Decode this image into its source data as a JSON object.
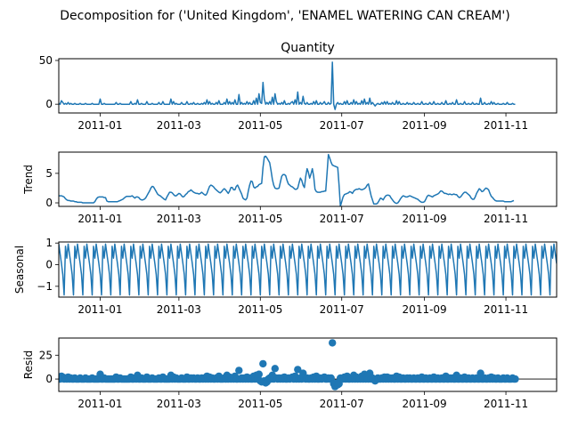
{
  "suptitle": "Decomposition for ('United Kingdom', 'ENAMEL WATERING CAN CREAM')",
  "line_color": "#1f77b4",
  "chart_data": [
    {
      "type": "line",
      "panel": "observed",
      "title": "Quantity",
      "ylabel": "",
      "xlim": [
        "2010-12-01",
        "2011-12-09"
      ],
      "ylim": [
        -10,
        52
      ],
      "yticks": [
        0,
        50
      ],
      "xticks": [
        "2011-01",
        "2011-03",
        "2011-05",
        "2011-07",
        "2011-09",
        "2011-11"
      ],
      "grid": false,
      "x_start": "2010-12-01",
      "values": [
        1,
        0,
        4,
        2,
        0,
        1,
        0,
        2,
        0,
        1,
        0,
        0,
        1,
        0,
        0,
        0,
        1,
        0,
        0,
        0,
        1,
        0,
        0,
        0,
        0,
        1,
        0,
        0,
        0,
        0,
        0,
        6,
        0,
        0,
        1,
        0,
        0,
        0,
        0,
        0,
        0,
        0,
        0,
        2,
        0,
        0,
        1,
        0,
        0,
        0,
        0,
        0,
        0,
        0,
        3,
        0,
        0,
        1,
        0,
        5,
        0,
        0,
        1,
        0,
        0,
        0,
        3,
        0,
        0,
        0,
        1,
        0,
        0,
        0,
        0,
        2,
        0,
        0,
        3,
        0,
        0,
        0,
        0,
        0,
        6,
        0,
        3,
        0,
        1,
        0,
        0,
        0,
        2,
        0,
        0,
        0,
        3,
        0,
        0,
        1,
        0,
        2,
        0,
        0,
        1,
        0,
        0,
        1,
        0,
        2,
        0,
        5,
        0,
        3,
        0,
        1,
        0,
        0,
        2,
        0,
        4,
        0,
        0,
        0,
        2,
        0,
        6,
        0,
        3,
        0,
        2,
        0,
        5,
        0,
        0,
        11,
        0,
        2,
        0,
        1,
        0,
        3,
        0,
        2,
        0,
        0,
        4,
        0,
        7,
        0,
        12,
        2,
        1,
        25,
        6,
        0,
        2,
        0,
        3,
        0,
        8,
        0,
        12,
        3,
        0,
        1,
        0,
        2,
        0,
        4,
        0,
        0,
        1,
        0,
        2,
        3,
        0,
        5,
        0,
        14,
        0,
        2,
        0,
        9,
        1,
        0,
        2,
        0,
        0,
        1,
        0,
        3,
        0,
        4,
        0,
        0,
        2,
        0,
        1,
        3,
        0,
        0,
        2,
        0,
        1,
        48,
        0,
        -6,
        0,
        2,
        0,
        1,
        0,
        0,
        3,
        0,
        4,
        0,
        0,
        2,
        0,
        5,
        0,
        3,
        0,
        1,
        0,
        4,
        0,
        6,
        0,
        2,
        0,
        7,
        0,
        2,
        0,
        -2,
        0,
        1,
        0,
        0,
        2,
        0,
        3,
        0,
        3,
        0,
        1,
        0,
        2,
        0,
        0,
        4,
        0,
        3,
        0,
        0,
        1,
        0,
        0,
        2,
        0,
        1,
        0,
        0,
        2,
        0,
        0,
        1,
        0,
        0,
        3,
        0,
        0,
        1,
        0,
        0,
        2,
        0,
        0,
        3,
        0,
        0,
        1,
        0,
        0,
        2,
        0,
        0,
        4,
        0,
        0,
        1,
        0,
        2,
        0,
        0,
        5,
        0,
        0,
        1,
        0,
        0,
        3,
        0,
        0,
        1,
        0,
        0,
        2,
        0,
        0,
        1,
        0,
        0,
        7,
        0,
        0,
        2,
        0,
        0,
        1,
        0,
        3,
        0,
        2,
        0,
        0,
        1,
        0,
        0,
        0,
        1,
        0,
        0,
        2,
        0,
        0,
        0,
        1,
        0,
        0
      ]
    },
    {
      "type": "line",
      "panel": "trend",
      "title": "",
      "ylabel": "Trend",
      "xlim": [
        "2010-12-01",
        "2011-12-09"
      ],
      "ylim": [
        -0.6,
        8.6
      ],
      "yticks": [
        0,
        5
      ],
      "xticks": [
        "2011-01",
        "2011-03",
        "2011-05",
        "2011-07",
        "2011-09",
        "2011-11"
      ],
      "grid": false,
      "x_start": "2010-12-01",
      "values": [
        1.2,
        1.2,
        1.2,
        1.1,
        1,
        0.7,
        0.5,
        0.4,
        0.4,
        0.3,
        0.3,
        0.3,
        0.2,
        0.2,
        0.1,
        0.1,
        0.1,
        0.1,
        0,
        0,
        0,
        0,
        0,
        0,
        0,
        0,
        0,
        0.2,
        0.6,
        0.9,
        1,
        1,
        1,
        1,
        0.9,
        0.9,
        0.3,
        0.2,
        0.2,
        0.2,
        0.2,
        0.2,
        0.2,
        0.2,
        0.2,
        0.3,
        0.4,
        0.5,
        0.6,
        0.8,
        1,
        1.1,
        1.1,
        1.1,
        1.1,
        1.2,
        1,
        0.8,
        1,
        1,
        0.9,
        0.6,
        0.5,
        0.5,
        0.6,
        0.8,
        1.2,
        1.6,
        2,
        2.5,
        2.8,
        2.7,
        2.3,
        1.9,
        1.5,
        1.3,
        1.2,
        1,
        0.8,
        0.6,
        0.5,
        1,
        1.4,
        1.8,
        1.8,
        1.7,
        1.4,
        1.2,
        1.2,
        1.4,
        1.6,
        1.5,
        1.2,
        1,
        1.1,
        1.4,
        1.6,
        1.9,
        2,
        2.2,
        2,
        1.8,
        1.7,
        1.6,
        1.6,
        1.5,
        1.6,
        1.8,
        1.6,
        1.4,
        1.3,
        1.6,
        2.2,
        2.8,
        3,
        2.9,
        2.7,
        2.4,
        2.2,
        2,
        1.8,
        1.7,
        1.9,
        2.2,
        2.4,
        2.2,
        1.9,
        1.6,
        2,
        2.6,
        2.6,
        2.2,
        2.2,
        2.8,
        3,
        2.5,
        2,
        1.5,
        0.8,
        0.6,
        0.5,
        0.8,
        2,
        3,
        3.7,
        3.6,
        2.7,
        2.5,
        2.7,
        2.8,
        3.1,
        3.2,
        3.3,
        6,
        7.8,
        7.9,
        7.6,
        7.2,
        6.8,
        5.5,
        4,
        3,
        2.5,
        2.4,
        2.4,
        2.5,
        3.5,
        4.5,
        4.8,
        4.8,
        4.6,
        3.8,
        3.2,
        3,
        2.8,
        2.7,
        2.5,
        2.3,
        2.3,
        2.5,
        3.4,
        4.2,
        3.8,
        3,
        2.6,
        4.5,
        5.8,
        5.2,
        4.2,
        4.9,
        5.8,
        4.5,
        2.3,
        1.9,
        1.8,
        1.8,
        1.8,
        1.9,
        1.9,
        2,
        2,
        5,
        8.2,
        7.6,
        6.9,
        6.4,
        6.3,
        6.2,
        6.1,
        6,
        3,
        -0.6,
        0.2,
        1,
        1.4,
        1.5,
        1.6,
        1.7,
        1.9,
        1.8,
        1.6,
        2,
        2.2,
        2.3,
        2.3,
        2.4,
        2.3,
        2.2,
        2.3,
        2.4,
        2.6,
        3,
        3.2,
        2.2,
        1.2,
        0.5,
        -0.2,
        -0.2,
        -0.2,
        0,
        0.4,
        0.8,
        0.7,
        0.5,
        0.9,
        1.2,
        1.3,
        1.3,
        1.2,
        0.8,
        0.5,
        0.2,
        0,
        -0.1,
        0,
        0.3,
        0.7,
        1,
        1.2,
        1.1,
        1,
        1,
        1.1,
        1.2,
        1.1,
        1,
        0.9,
        0.8,
        0.7,
        0.6,
        0.4,
        0.2,
        0.1,
        0.1,
        0.2,
        0.6,
        1.1,
        1.3,
        1.2,
        1.1,
        1,
        1.2,
        1.3,
        1.4,
        1.5,
        1.7,
        2,
        2,
        1.8,
        1.6,
        1.6,
        1.5,
        1.4,
        1.5,
        1.4,
        1.4,
        1.5,
        1.4,
        1.4,
        1.1,
        0.9,
        1,
        1.3,
        1.6,
        1.8,
        1.8,
        1.6,
        1.4,
        1.2,
        0.8,
        0.6,
        0.6,
        1,
        1.6,
        2,
        2.4,
        2.2,
        1.9,
        2,
        2.3,
        2.5,
        2.4,
        2.2,
        1.6,
        1.1,
        0.9,
        0.6,
        0.4,
        0.3,
        0.3,
        0.3,
        0.3,
        0.3,
        0.3,
        0.2,
        0.2,
        0.2,
        0.2,
        0.2,
        0.2,
        0.3,
        0.4
      ]
    },
    {
      "type": "line",
      "panel": "seasonal",
      "title": "",
      "ylabel": "Seasonal",
      "xlim": [
        "2010-12-01",
        "2011-12-09"
      ],
      "ylim": [
        -1.5,
        1.05
      ],
      "yticks": [
        -1,
        0,
        1
      ],
      "xticks": [
        "2011-01",
        "2011-03",
        "2011-05",
        "2011-07",
        "2011-09",
        "2011-11"
      ],
      "grid": false,
      "period": 7,
      "pattern": [
        0.95,
        0.5,
        0.05,
        -0.45,
        -1.4,
        0.85,
        0.3
      ]
    },
    {
      "type": "scatter",
      "panel": "resid",
      "title": "",
      "ylabel": "Resid",
      "xlim": [
        "2010-12-01",
        "2011-12-09"
      ],
      "ylim": [
        -13,
        43
      ],
      "yticks": [
        0,
        25
      ],
      "xticks": [
        "2011-01",
        "2011-03",
        "2011-05",
        "2011-07",
        "2011-09",
        "2011-11"
      ],
      "grid": false,
      "baseline": 0,
      "x_start": "2010-12-01",
      "values": [
        1,
        0,
        3,
        2,
        0,
        1,
        0,
        2,
        0,
        1,
        0,
        0,
        1,
        0,
        0,
        0,
        1,
        0,
        0,
        0,
        1,
        0,
        0,
        0,
        0,
        1,
        0,
        0,
        0,
        0,
        0,
        5,
        0,
        0,
        1,
        0,
        0,
        0,
        0,
        0,
        0,
        0,
        0,
        2,
        0,
        0,
        1,
        0,
        0,
        0,
        0,
        0,
        0,
        0,
        2,
        0,
        0,
        1,
        0,
        4,
        0,
        0,
        1,
        0,
        0,
        0,
        2,
        0,
        0,
        0,
        1,
        0,
        0,
        0,
        0,
        1,
        0,
        0,
        2,
        0,
        0,
        0,
        0,
        0,
        4,
        0,
        2,
        0,
        1,
        0,
        0,
        0,
        1,
        0,
        0,
        0,
        2,
        0,
        0,
        1,
        0,
        1,
        0,
        0,
        1,
        0,
        0,
        1,
        0,
        1,
        0,
        3,
        0,
        2,
        0,
        1,
        0,
        0,
        1,
        0,
        3,
        0,
        0,
        0,
        1,
        0,
        4,
        0,
        2,
        0,
        1,
        0,
        3,
        0,
        0,
        9,
        0,
        1,
        0,
        1,
        0,
        2,
        0,
        1,
        0,
        0,
        3,
        0,
        4,
        0,
        5,
        -2,
        -3,
        16,
        -2,
        -4,
        -3,
        0,
        1,
        0,
        4,
        0,
        11,
        1,
        0,
        1,
        0,
        1,
        0,
        2,
        0,
        0,
        1,
        0,
        1,
        2,
        0,
        3,
        0,
        10,
        0,
        1,
        0,
        6,
        1,
        0,
        1,
        0,
        0,
        1,
        0,
        2,
        0,
        3,
        0,
        0,
        1,
        0,
        1,
        2,
        0,
        0,
        1,
        0,
        1,
        38,
        -5,
        -8,
        -4,
        -6,
        -5,
        1,
        0,
        0,
        2,
        0,
        3,
        0,
        0,
        1,
        0,
        4,
        0,
        2,
        0,
        1,
        0,
        3,
        0,
        5,
        0,
        1,
        0,
        6,
        0,
        1,
        0,
        -2,
        0,
        1,
        0,
        0,
        1,
        0,
        2,
        0,
        2,
        0,
        1,
        0,
        1,
        0,
        0,
        3,
        0,
        2,
        0,
        0,
        1,
        0,
        0,
        1,
        0,
        1,
        0,
        0,
        1,
        0,
        0,
        1,
        0,
        0,
        2,
        0,
        0,
        1,
        0,
        0,
        1,
        0,
        0,
        2,
        0,
        0,
        1,
        0,
        0,
        1,
        0,
        0,
        3,
        0,
        0,
        1,
        0,
        1,
        0,
        0,
        4,
        0,
        0,
        1,
        0,
        0,
        2,
        0,
        0,
        1,
        0,
        0,
        1,
        0,
        0,
        1,
        0,
        0,
        6,
        0,
        0,
        1,
        0,
        0,
        1,
        0,
        2,
        0,
        1,
        0,
        0,
        1,
        0,
        0,
        0,
        1,
        0,
        0,
        1,
        0,
        0,
        0,
        1,
        0,
        0
      ]
    }
  ]
}
